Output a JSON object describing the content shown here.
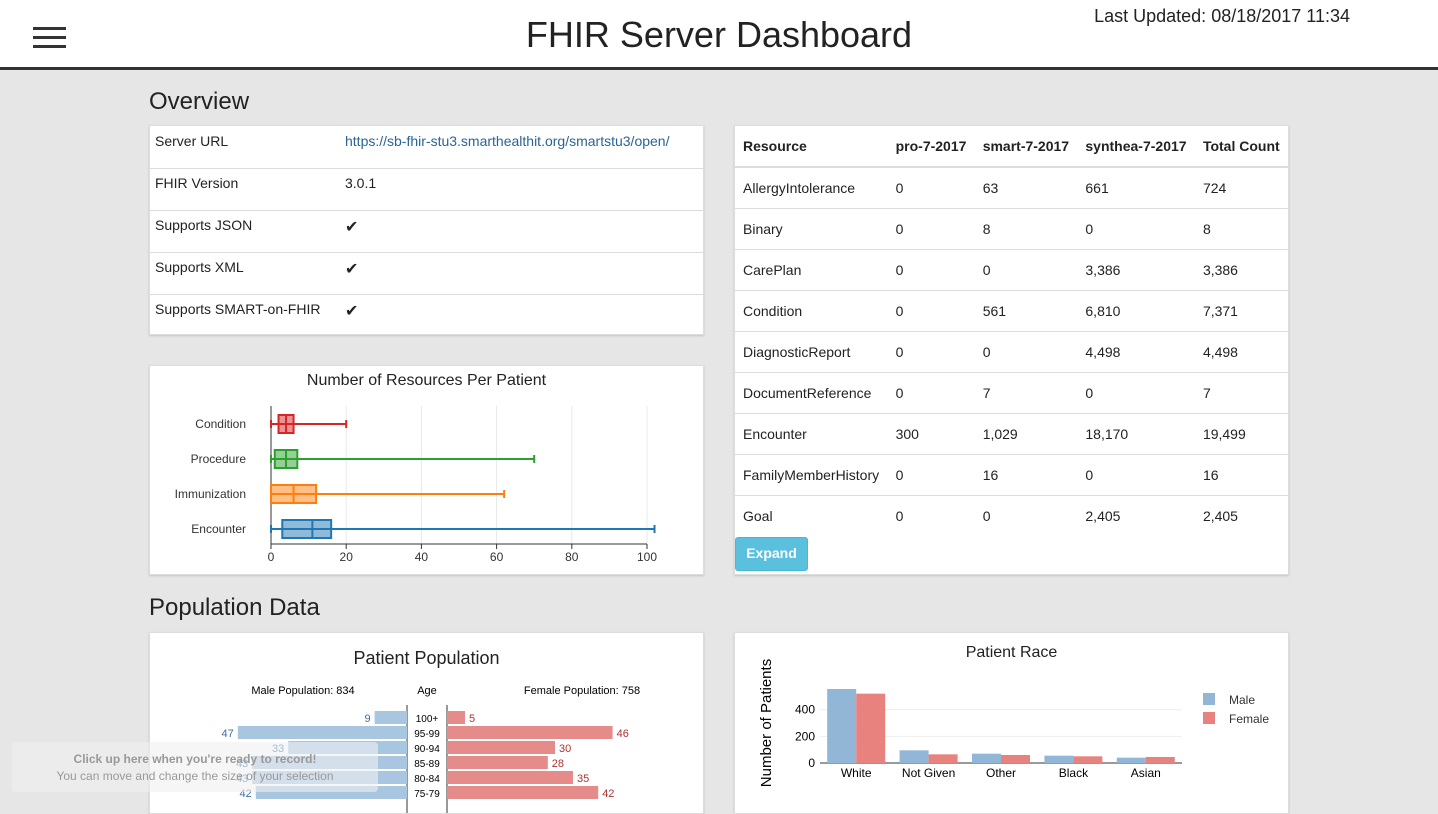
{
  "header": {
    "title": "FHIR Server Dashboard",
    "last_updated": "Last Updated: 08/18/2017 11:34",
    "menu_icon": "hamburger-menu-icon"
  },
  "overview": {
    "section_title": "Overview",
    "info": [
      {
        "label": "Server URL",
        "value": "https://sb-fhir-stu3.smarthealthit.org/smartstu3/open/",
        "type": "link"
      },
      {
        "label": "FHIR Version",
        "value": "3.0.1",
        "type": "text"
      },
      {
        "label": "Supports JSON",
        "value": "✔",
        "type": "check"
      },
      {
        "label": "Supports XML",
        "value": "✔",
        "type": "check"
      },
      {
        "label": "Supports SMART-on-FHIR",
        "value": "✔",
        "type": "check"
      }
    ],
    "resources_table": {
      "columns": [
        "Resource",
        "pro-7-2017",
        "smart-7-2017",
        "synthea-7-2017",
        "Total Count"
      ],
      "rows": [
        [
          "AllergyIntolerance",
          "0",
          "63",
          "661",
          "724"
        ],
        [
          "Binary",
          "0",
          "8",
          "0",
          "8"
        ],
        [
          "CarePlan",
          "0",
          "0",
          "3,386",
          "3,386"
        ],
        [
          "Condition",
          "0",
          "561",
          "6,810",
          "7,371"
        ],
        [
          "DiagnosticReport",
          "0",
          "0",
          "4,498",
          "4,498"
        ],
        [
          "DocumentReference",
          "0",
          "7",
          "0",
          "7"
        ],
        [
          "Encounter",
          "300",
          "1,029",
          "18,170",
          "19,499"
        ],
        [
          "FamilyMemberHistory",
          "0",
          "16",
          "0",
          "16"
        ],
        [
          "Goal",
          "0",
          "0",
          "2,405",
          "2,405"
        ]
      ],
      "expand_label": "Expand"
    }
  },
  "population": {
    "section_title": "Population Data"
  },
  "recording_overlay": {
    "line1": "Click up here when you're ready to record!",
    "line2": "You can move and change the size of your selection"
  },
  "chart_data": [
    {
      "type": "boxplot",
      "title": "Number of Resources Per Patient",
      "orientation": "horizontal",
      "xlim": [
        0,
        100
      ],
      "xticks": [
        0,
        20,
        40,
        60,
        80,
        100
      ],
      "series": [
        {
          "name": "Condition",
          "color": "#d62728",
          "min": 0,
          "q1": 2,
          "median": 4,
          "q3": 6,
          "max": 20
        },
        {
          "name": "Procedure",
          "color": "#2ca02c",
          "min": 0,
          "q1": 1,
          "median": 4,
          "q3": 7,
          "max": 70
        },
        {
          "name": "Immunization",
          "color": "#ff7f0e",
          "min": 0,
          "q1": 0,
          "median": 6,
          "q3": 12,
          "max": 62
        },
        {
          "name": "Encounter",
          "color": "#1f77b4",
          "min": 0,
          "q1": 3,
          "median": 11,
          "q3": 16,
          "max": 102
        }
      ]
    },
    {
      "type": "bar",
      "title": "Patient Population",
      "subtitle_left": "Male Population: 834",
      "subtitle_center": "Age",
      "subtitle_right": "Female Population: 758",
      "categories": [
        "100+",
        "95-99",
        "90-94",
        "85-89",
        "80-84",
        "75-79"
      ],
      "series": [
        {
          "name": "Male",
          "color": "#a9c6e0",
          "label_color": "#3b6ea8",
          "values": [
            9,
            47,
            33,
            43,
            43,
            42
          ]
        },
        {
          "name": "Female",
          "color": "#e58c8a",
          "label_color": "#a33",
          "values": [
            5,
            46,
            30,
            28,
            35,
            42
          ]
        }
      ],
      "xlim": [
        0,
        50
      ]
    },
    {
      "type": "bar",
      "title": "Patient Race",
      "ylabel": "Number of Patients",
      "categories": [
        "White",
        "Not Given",
        "Other",
        "Black",
        "Asian"
      ],
      "yticks": [
        0,
        200,
        400
      ],
      "ylim": [
        0,
        600
      ],
      "series": [
        {
          "name": "Male",
          "color": "#92b6d5",
          "values": [
            555,
            95,
            70,
            55,
            40
          ]
        },
        {
          "name": "Female",
          "color": "#e8827e",
          "values": [
            520,
            65,
            60,
            50,
            45
          ]
        }
      ],
      "legend": "right"
    }
  ]
}
